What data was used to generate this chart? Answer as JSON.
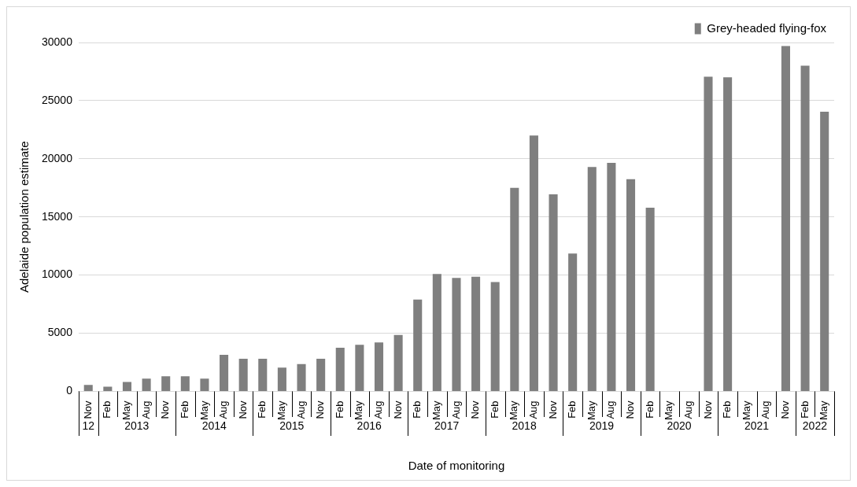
{
  "chart_data": {
    "type": "bar",
    "xlabel": "Date of monitoring",
    "ylabel": "Adelaide population estimate",
    "categories": [
      "Nov",
      "Feb",
      "May",
      "Aug",
      "Nov",
      "Feb",
      "May",
      "Aug",
      "Nov",
      "Feb",
      "May",
      "Aug",
      "Nov",
      "Feb",
      "May",
      "Aug",
      "Nov",
      "Feb",
      "May",
      "Aug",
      "Nov",
      "Feb",
      "May",
      "Aug",
      "Nov",
      "Feb",
      "May",
      "Aug",
      "Nov",
      "Feb",
      "May",
      "Aug",
      "Nov",
      "Feb",
      "May",
      "Aug",
      "Nov",
      "Feb",
      "May"
    ],
    "series": [
      {
        "name": "Grey-headed flying-fox",
        "color": "#7f7f7f",
        "values": [
          550,
          400,
          800,
          1100,
          1300,
          1300,
          1100,
          3150,
          2800,
          2800,
          2050,
          2350,
          2800,
          3750,
          4000,
          4200,
          4850,
          7900,
          10100,
          9750,
          9850,
          9400,
          17500,
          22000,
          16950,
          11850,
          19300,
          19650,
          18250,
          15800,
          null,
          null,
          27050,
          27000,
          null,
          null,
          29700,
          28000,
          24050
        ]
      }
    ],
    "ylim": [
      0,
      30000
    ],
    "yticks": [
      0,
      5000,
      10000,
      15000,
      20000,
      25000,
      30000
    ],
    "grid": "y",
    "legend": "top right",
    "annotations": [
      "12",
      "2013",
      "2014",
      "2015",
      "2016",
      "2017",
      "2018",
      "2019",
      "2020",
      "2021",
      "2022"
    ]
  }
}
